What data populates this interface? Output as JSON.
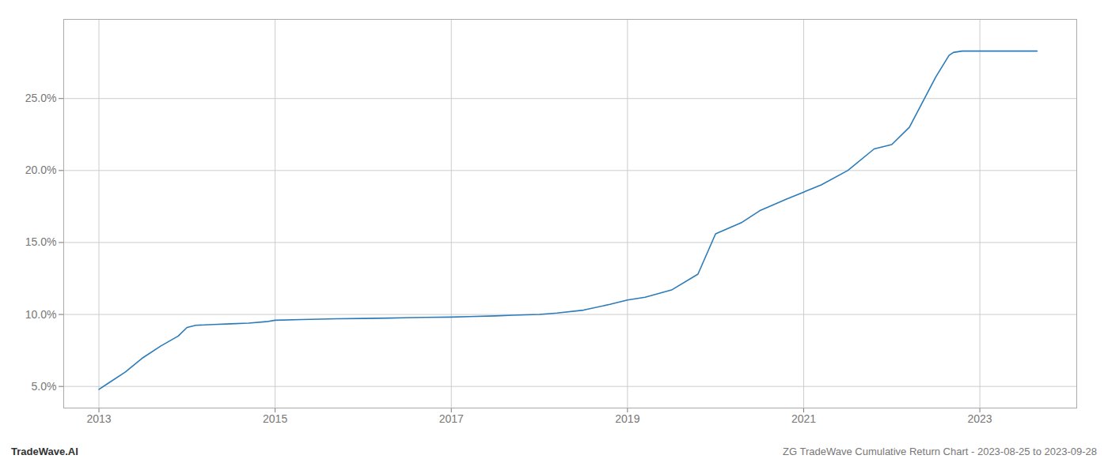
{
  "chart_data": {
    "type": "line",
    "annotations": [
      "TradeWave.AI",
      "ZG TradeWave Cumulative Return Chart - 2023-08-25 to 2023-09-28"
    ],
    "x": [
      2013.0,
      2013.1,
      2013.3,
      2013.5,
      2013.7,
      2013.9,
      2014.0,
      2014.1,
      2014.3,
      2014.5,
      2014.7,
      2014.9,
      2015.0,
      2015.3,
      2015.7,
      2016.0,
      2016.3,
      2016.7,
      2017.0,
      2017.2,
      2017.5,
      2017.7,
      2018.0,
      2018.2,
      2018.5,
      2018.8,
      2019.0,
      2019.2,
      2019.5,
      2019.8,
      2020.0,
      2020.3,
      2020.5,
      2020.8,
      2021.0,
      2021.2,
      2021.5,
      2021.8,
      2022.0,
      2022.2,
      2022.5,
      2022.65,
      2022.7,
      2022.8,
      2023.0,
      2023.3,
      2023.65
    ],
    "values": [
      4.8,
      5.2,
      6.0,
      7.0,
      7.8,
      8.5,
      9.1,
      9.25,
      9.3,
      9.35,
      9.4,
      9.5,
      9.6,
      9.65,
      9.7,
      9.72,
      9.75,
      9.8,
      9.82,
      9.85,
      9.9,
      9.95,
      10.0,
      10.1,
      10.3,
      10.7,
      11.0,
      11.2,
      11.7,
      12.8,
      15.6,
      16.4,
      17.2,
      18.0,
      18.5,
      19.0,
      20.0,
      21.5,
      21.8,
      23.0,
      26.5,
      28.0,
      28.2,
      28.3,
      28.3,
      28.3,
      28.3
    ],
    "color": "#2b7bba",
    "xlim": [
      2012.6,
      2024.1
    ],
    "xticks": [
      2013,
      2015,
      2017,
      2019,
      2021,
      2023
    ],
    "ylim": [
      3.5,
      30.5
    ],
    "yticks": [
      {
        "value": 5.0,
        "label": "5.0%"
      },
      {
        "value": 10.0,
        "label": "10.0%"
      },
      {
        "value": 15.0,
        "label": "15.0%"
      },
      {
        "value": 20.0,
        "label": "20.0%"
      },
      {
        "value": 25.0,
        "label": "25.0%"
      }
    ],
    "grid": true
  }
}
